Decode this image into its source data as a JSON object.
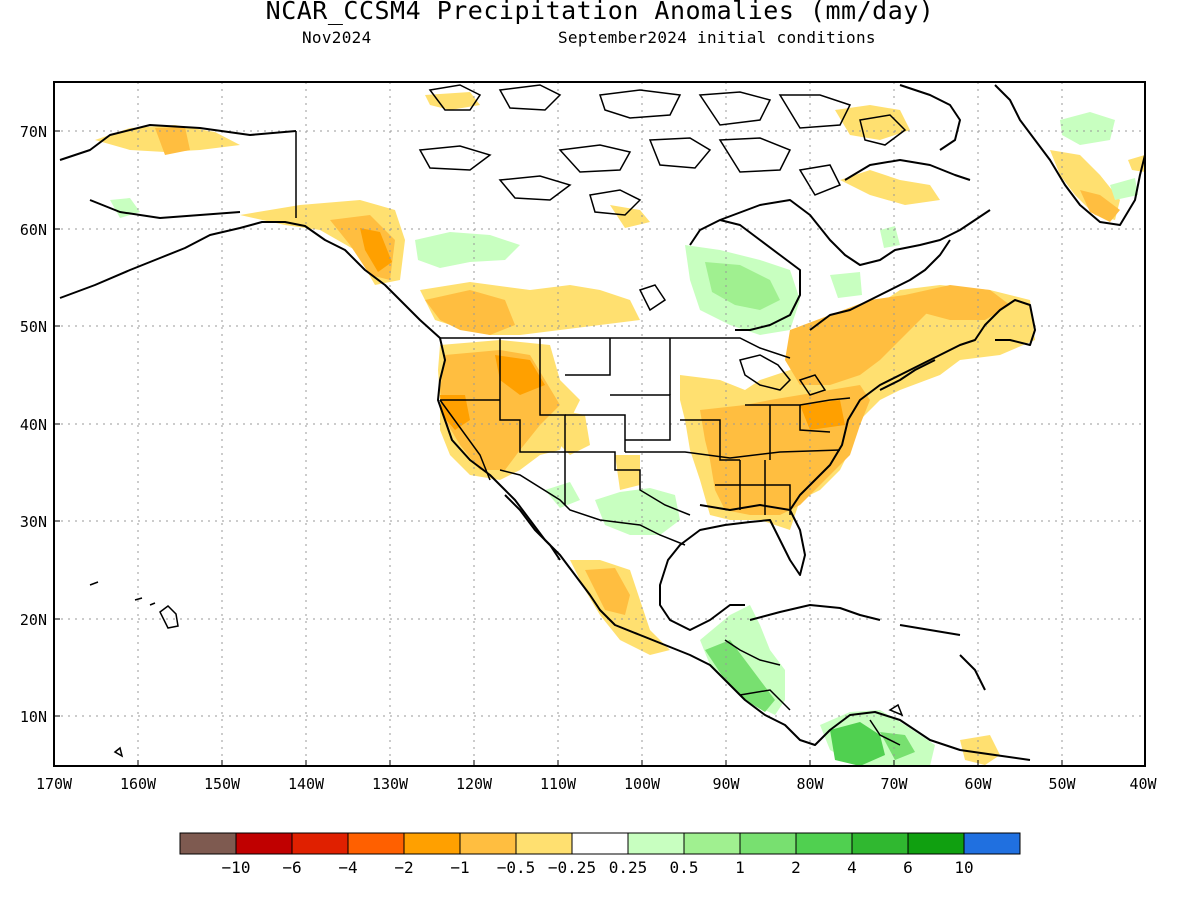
{
  "title": "NCAR_CCSM4 Precipitation Anomalies (mm/day)",
  "subtitle_left": "Nov2024",
  "subtitle_right": "September2024 initial conditions",
  "map": {
    "region": "North America",
    "lon_range": [
      -170,
      -40
    ],
    "lat_range": [
      5,
      75
    ],
    "lon_ticks": [
      "170W",
      "160W",
      "150W",
      "140W",
      "130W",
      "120W",
      "110W",
      "100W",
      "90W",
      "80W",
      "70W",
      "60W",
      "50W",
      "40W"
    ],
    "lat_ticks": [
      "10N",
      "20N",
      "30N",
      "40N",
      "50N",
      "60N",
      "70N"
    ],
    "gridlines": "dotted"
  },
  "colorbar": {
    "labels": [
      "-10",
      "-6",
      "-4",
      "-2",
      "-1",
      "-0.5",
      "-0.25",
      "0.25",
      "0.5",
      "1",
      "2",
      "4",
      "6",
      "10"
    ],
    "colors": [
      "#7e5a50",
      "#c00000",
      "#e02000",
      "#ff6000",
      "#ffa000",
      "#ffbe40",
      "#ffe070",
      "#ffffff",
      "#c8ffc0",
      "#a0f090",
      "#78e070",
      "#50d050",
      "#30b830",
      "#10a010",
      "#2070e0"
    ]
  }
}
